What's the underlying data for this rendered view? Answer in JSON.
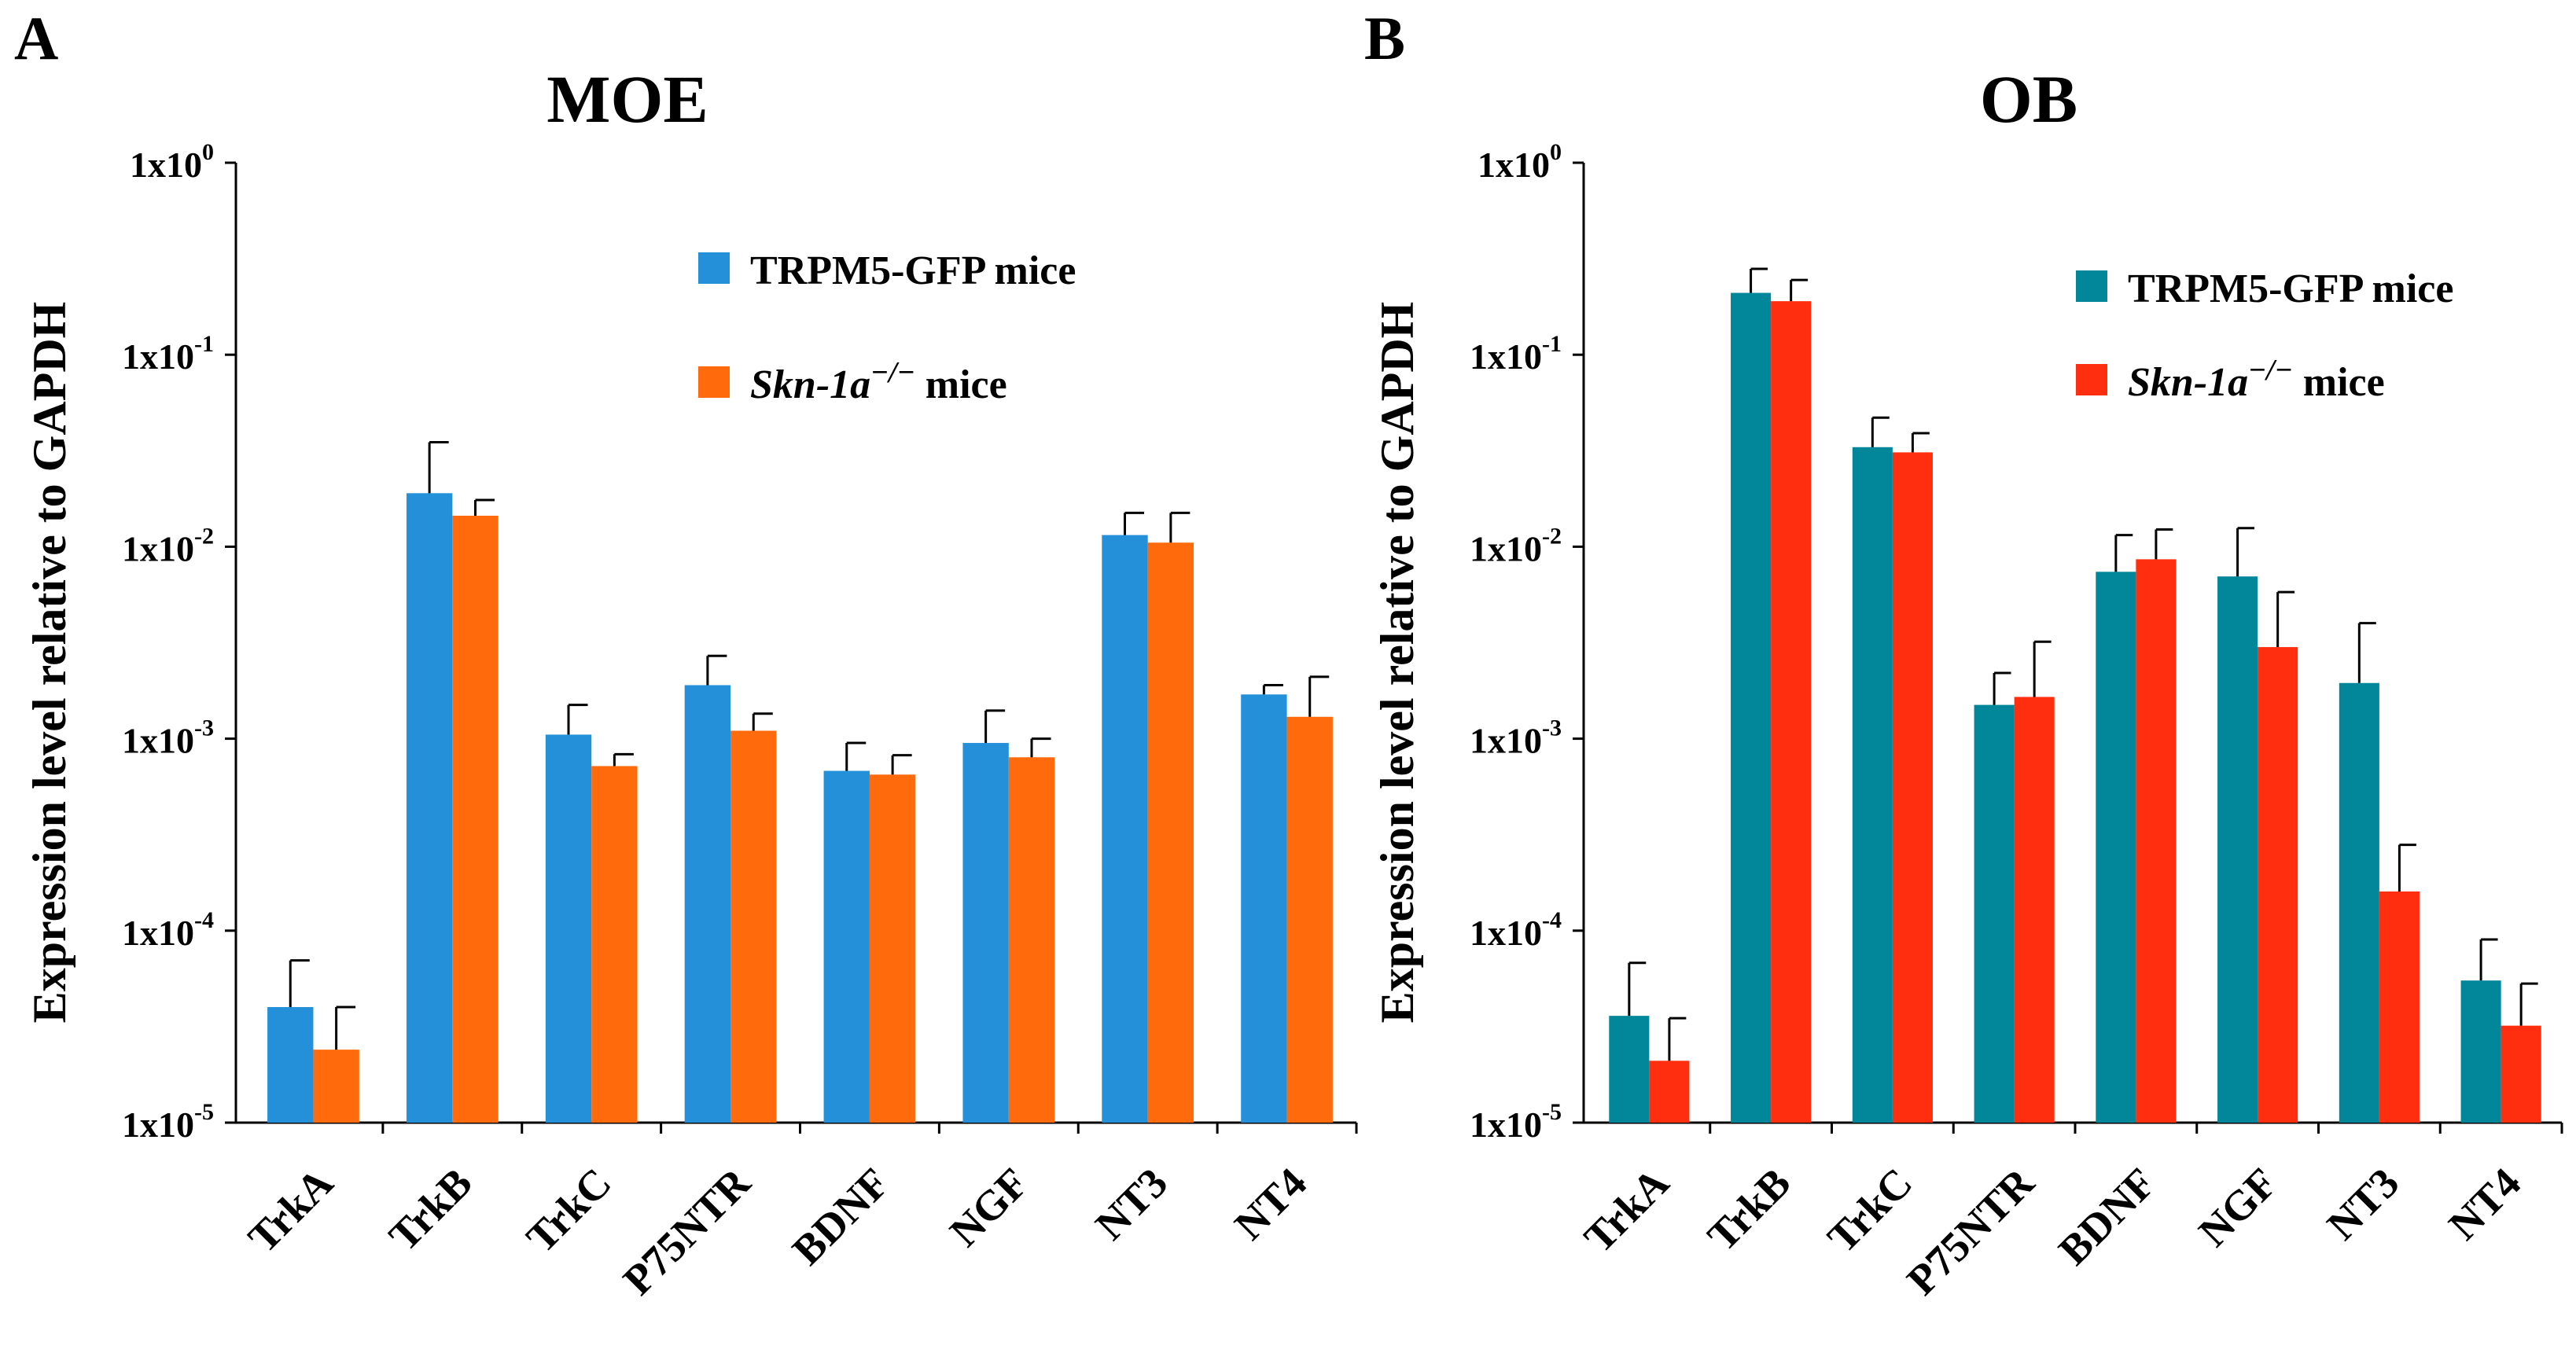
{
  "chart_data": [
    {
      "panel_letter": "A",
      "type": "bar",
      "title": "MOE",
      "ylabel": "Expression  level relative to GAPDH",
      "yscale": "log",
      "ylim_exponents": [
        -5,
        0
      ],
      "ytick_base": "1x10",
      "ytick_exponents": [
        "0",
        "-1",
        "-2",
        "-3",
        "-4",
        "-5"
      ],
      "categories": [
        "TrkA",
        "TrkB",
        "TrkC",
        "P75NTR",
        "BDNF",
        "NGF",
        "NT3",
        "NT4"
      ],
      "legend_position": "top-right",
      "series": [
        {
          "legend_main": "TRPM5-GFP mice",
          "legend_italic": "",
          "legend_sup": "",
          "legend_tail": "",
          "color": "#2590DA",
          "values": [
            4e-05,
            0.019,
            0.00105,
            0.0019,
            0.00068,
            0.00095,
            0.0115,
            0.0017
          ],
          "errors": [
            7e-05,
            0.035,
            0.0015,
            0.0027,
            0.00095,
            0.0014,
            0.015,
            0.0019
          ]
        },
        {
          "legend_main": "",
          "legend_italic": "Skn-1a",
          "legend_sup": "−/−",
          "legend_tail": " mice",
          "color": "#FF6A0D",
          "values": [
            2.4e-05,
            0.0145,
            0.00072,
            0.0011,
            0.00065,
            0.0008,
            0.0105,
            0.0013
          ],
          "errors": [
            4e-05,
            0.0175,
            0.00083,
            0.00135,
            0.00082,
            0.001,
            0.015,
            0.0021
          ]
        }
      ]
    },
    {
      "panel_letter": "B",
      "type": "bar",
      "title": "OB",
      "ylabel": "Expression  level relative to GAPDH",
      "yscale": "log",
      "ylim_exponents": [
        -5,
        0
      ],
      "ytick_base": "1x10",
      "ytick_exponents": [
        "0",
        "-1",
        "-2",
        "-3",
        "-4",
        "-5"
      ],
      "categories": [
        "TrkA",
        "TrkB",
        "TrkC",
        "P75NTR",
        "BDNF",
        "NGF",
        "NT3",
        "NT4"
      ],
      "legend_position": "top-right",
      "series": [
        {
          "legend_main": "TRPM5-GFP mice",
          "legend_italic": "",
          "legend_sup": "",
          "legend_tail": "",
          "color": "#02869A",
          "values": [
            3.6e-05,
            0.21,
            0.033,
            0.0015,
            0.0074,
            0.007,
            0.00195,
            5.5e-05
          ],
          "errors": [
            6.8e-05,
            0.28,
            0.047,
            0.0022,
            0.0115,
            0.0125,
            0.004,
            9e-05
          ]
        },
        {
          "legend_main": "",
          "legend_italic": "Skn-1a",
          "legend_sup": "−/−",
          "legend_tail": " mice",
          "color": "#FF2E0E",
          "values": [
            2.1e-05,
            0.19,
            0.031,
            0.00165,
            0.0086,
            0.003,
            0.00016,
            3.2e-05
          ],
          "errors": [
            3.5e-05,
            0.245,
            0.039,
            0.0032,
            0.0123,
            0.0058,
            0.00028,
            5.3e-05
          ]
        }
      ]
    }
  ]
}
